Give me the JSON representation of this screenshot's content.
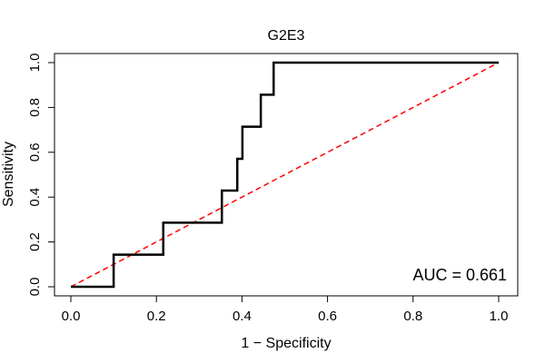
{
  "chart_data": {
    "type": "line",
    "title": "G2E3",
    "xlabel": "1 − Specificity",
    "ylabel": "Sensitivity",
    "xlim": [
      0,
      1
    ],
    "ylim": [
      0,
      1
    ],
    "x_ticks": [
      "0.0",
      "0.2",
      "0.4",
      "0.6",
      "0.8",
      "1.0"
    ],
    "y_ticks": [
      "0.0",
      "0.2",
      "0.4",
      "0.6",
      "0.8",
      "1.0"
    ],
    "grid": false,
    "annotation": "AUC = 0.661",
    "series": [
      {
        "line_color": "#000000",
        "line_style": "solid",
        "x": [
          0.0,
          0.1,
          0.1,
          0.216,
          0.216,
          0.353,
          0.353,
          0.389,
          0.389,
          0.401,
          0.401,
          0.444,
          0.444,
          0.474,
          0.474,
          1.0
        ],
        "y": [
          0.0,
          0.0,
          0.143,
          0.143,
          0.286,
          0.286,
          0.429,
          0.429,
          0.571,
          0.571,
          0.714,
          0.714,
          0.857,
          0.857,
          1.0,
          1.0
        ]
      },
      {
        "line_color": "#ff0000",
        "line_style": "dashed",
        "x": [
          0.0,
          1.0
        ],
        "y": [
          0.0,
          1.0
        ]
      }
    ]
  }
}
